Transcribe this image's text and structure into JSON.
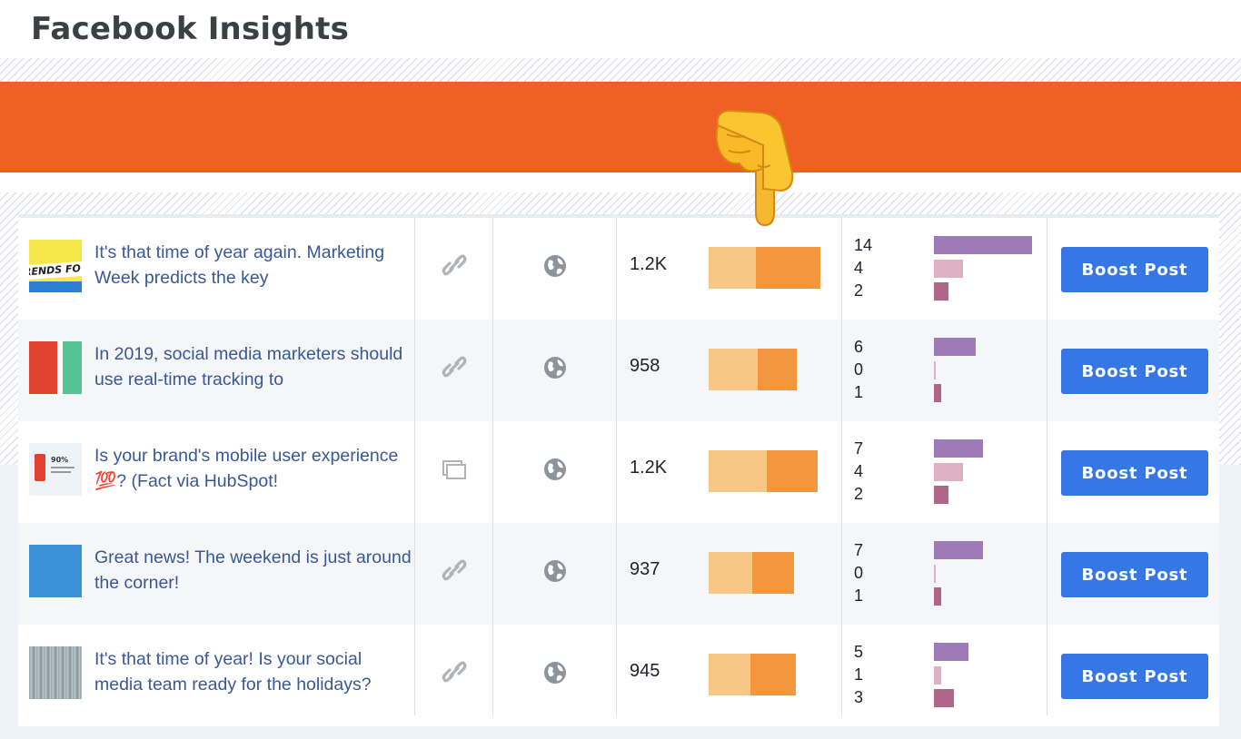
{
  "page": {
    "title": "Facebook Insights"
  },
  "posts": [
    {
      "text": "It's that time of year again. Marketing Week predicts the key",
      "type_icon": "link-icon",
      "reach": "1.2K",
      "reach_organic": 52,
      "reach_paid": 71,
      "engagement": [
        "14",
        "4",
        "2"
      ],
      "eng_bar": [
        108,
        32,
        16
      ],
      "boost_label": "Boost Post",
      "thumb": "trends-thumbnail",
      "thumb_text": "RENDS FO"
    },
    {
      "text": "In 2019, social media marketers should use real-time tracking to",
      "type_icon": "link-icon",
      "reach": "958",
      "reach_organic": 54,
      "reach_paid": 43,
      "engagement": [
        "6",
        "0",
        "1"
      ],
      "eng_bar": [
        46,
        2,
        8
      ],
      "boost_label": "Boost Post",
      "thumb": "red-green-thumbnail"
    },
    {
      "text": "Is your brand's mobile user experience 💯? (Fact via HubSpot!",
      "type_icon": "album-icon",
      "reach": "1.2K",
      "reach_organic": 64,
      "reach_paid": 56,
      "engagement": [
        "7",
        "4",
        "2"
      ],
      "eng_bar": [
        54,
        32,
        16
      ],
      "boost_label": "Boost Post",
      "thumb": "mobile-stat-thumbnail",
      "thumb_text": "90%"
    },
    {
      "text": "Great news! The weekend is just around the corner!",
      "type_icon": "link-icon",
      "reach": "937",
      "reach_organic": 48,
      "reach_paid": 46,
      "engagement": [
        "7",
        "0",
        "1"
      ],
      "eng_bar": [
        54,
        2,
        8
      ],
      "boost_label": "Boost Post",
      "thumb": "blue-thumbnail"
    },
    {
      "text": "It's that time of year! Is your social media team ready for the holidays?",
      "type_icon": "link-icon",
      "reach": "945",
      "reach_organic": 46,
      "reach_paid": 50,
      "engagement": [
        "5",
        "1",
        "3"
      ],
      "eng_bar": [
        38,
        8,
        22
      ],
      "boost_label": "Boost Post",
      "thumb": "snowy-trees-thumbnail"
    }
  ],
  "colors": {
    "banner": "#f06022",
    "link_text": "#385898",
    "boost_button": "#3578e5",
    "reach_organic": "#f8c785",
    "reach_paid": "#f2973e",
    "eng_1": "#9e7bb6",
    "eng_2": "#dfb1c4",
    "eng_3": "#b06686"
  },
  "overlay": {
    "icon": "pointing-down-hand-icon"
  }
}
